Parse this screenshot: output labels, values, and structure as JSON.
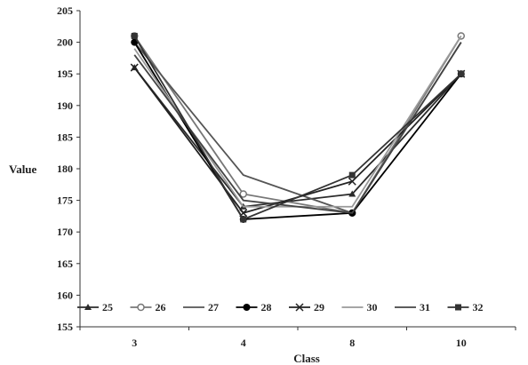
{
  "chart_data": {
    "type": "line",
    "title": "",
    "xlabel": "Class",
    "ylabel": "Value",
    "categories": [
      "3",
      "4",
      "8",
      "10"
    ],
    "ylim": [
      155,
      205
    ],
    "yticks": [
      155,
      160,
      165,
      170,
      175,
      180,
      185,
      190,
      195,
      200,
      205
    ],
    "grid": false,
    "legend_position": "bottom-inside",
    "series": [
      {
        "name": "25",
        "values": [
          196,
          174,
          176,
          195
        ],
        "color": "#2b2b2b",
        "marker": "triangle"
      },
      {
        "name": "26",
        "values": [
          201,
          176,
          173,
          201
        ],
        "color": "#777777",
        "marker": "circle-open"
      },
      {
        "name": "27",
        "values": [
          200,
          179,
          173,
          200
        ],
        "color": "#555555",
        "marker": "none"
      },
      {
        "name": "28",
        "values": [
          200,
          172,
          173,
          195
        ],
        "color": "#000000",
        "marker": "circle"
      },
      {
        "name": "29",
        "values": [
          196,
          173,
          178,
          195
        ],
        "color": "#222222",
        "marker": "x"
      },
      {
        "name": "30",
        "values": [
          199,
          174,
          174,
          201
        ],
        "color": "#999999",
        "marker": "none"
      },
      {
        "name": "31",
        "values": [
          198,
          175,
          173,
          200
        ],
        "color": "#444444",
        "marker": "none"
      },
      {
        "name": "32",
        "values": [
          201,
          172,
          179,
          195
        ],
        "color": "#333333",
        "marker": "square"
      }
    ]
  }
}
